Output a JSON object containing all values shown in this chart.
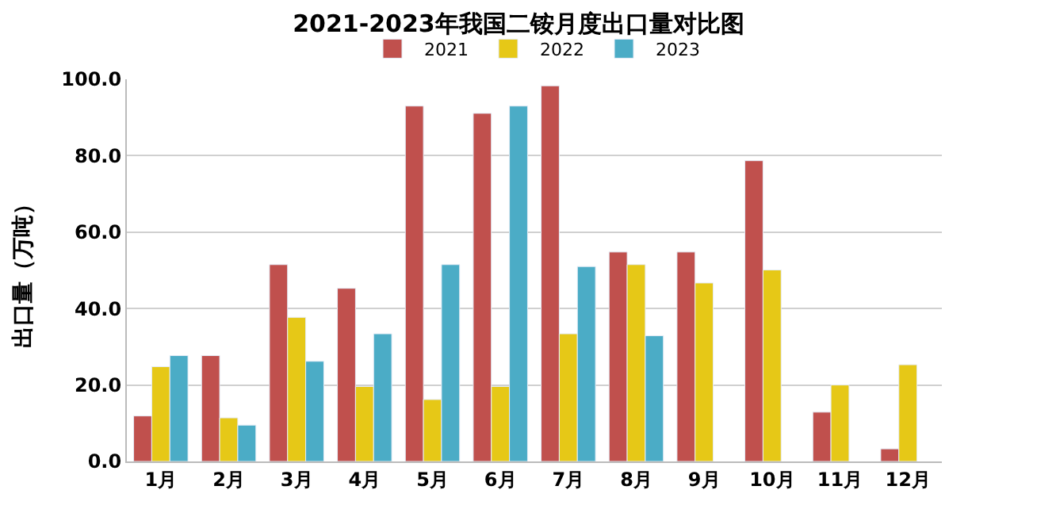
{
  "chart_data": {
    "type": "bar",
    "title": "2021-2023年我国二铵月度出口量对比图",
    "ylabel": "出口量（万吨）",
    "categories": [
      "1月",
      "2月",
      "3月",
      "4月",
      "5月",
      "6月",
      "7月",
      "8月",
      "9月",
      "10月",
      "11月",
      "12月"
    ],
    "series": [
      {
        "name": "2021",
        "color": "#c0504d",
        "values": [
          11.9,
          27.7,
          51.5,
          45.3,
          93.0,
          91.1,
          98.3,
          54.8,
          54.8,
          78.7,
          12.9,
          3.3
        ]
      },
      {
        "name": "2022",
        "color": "#e6c817",
        "values": [
          24.8,
          11.4,
          37.7,
          19.6,
          16.2,
          19.6,
          33.4,
          51.5,
          46.7,
          50.1,
          20.0,
          25.3
        ]
      },
      {
        "name": "2023",
        "color": "#4bacc6",
        "values": [
          27.7,
          9.5,
          26.2,
          33.4,
          51.5,
          93.0,
          51.0,
          32.9,
          null,
          null,
          null,
          null
        ]
      }
    ],
    "ylim": [
      0,
      100
    ],
    "yticks": [
      {
        "value": 0,
        "label": "0.0"
      },
      {
        "value": 20,
        "label": "20.0"
      },
      {
        "value": 40,
        "label": "40.0"
      },
      {
        "value": 60,
        "label": "60.0"
      },
      {
        "value": 80,
        "label": "80.0"
      },
      {
        "value": 100,
        "label": "100.0"
      }
    ],
    "grid": "y",
    "legend": "top"
  }
}
